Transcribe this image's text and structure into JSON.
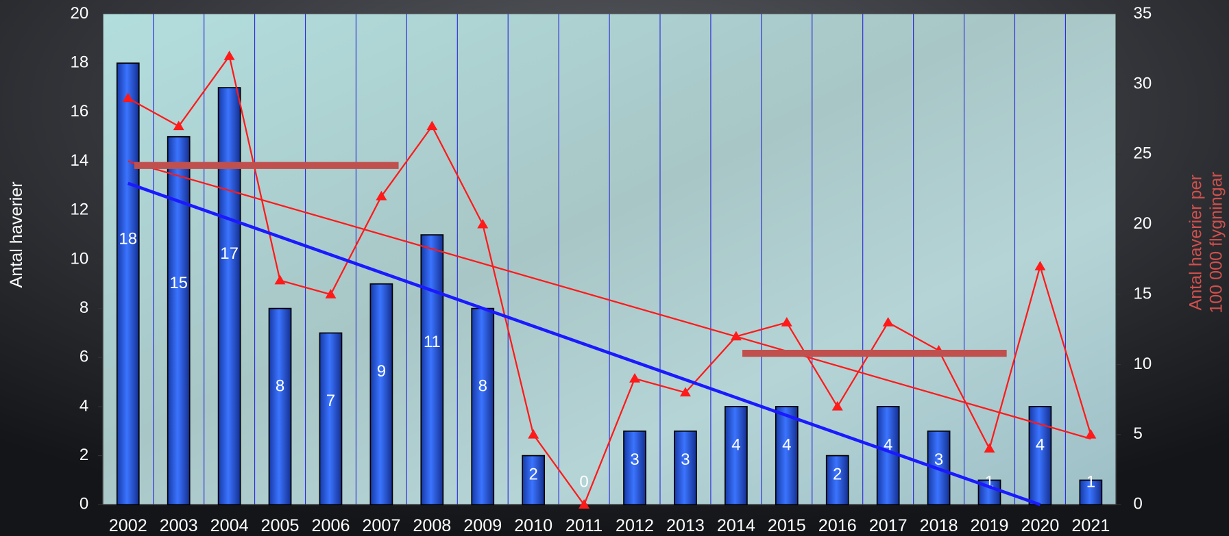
{
  "chart_data": {
    "type": "bar_line",
    "categories": [
      "2002",
      "2003",
      "2004",
      "2005",
      "2006",
      "2007",
      "2008",
      "2009",
      "2010",
      "2011",
      "2012",
      "2013",
      "2014",
      "2015",
      "2016",
      "2017",
      "2018",
      "2019",
      "2020",
      "2021"
    ],
    "y_label": "Antal haverier",
    "y2_label": [
      "Antal haverier per",
      "100 000 flygningar"
    ],
    "ylim": [
      0,
      20
    ],
    "yticks": [
      0,
      2,
      4,
      6,
      8,
      10,
      12,
      14,
      16,
      18,
      20
    ],
    "y2lim": [
      0,
      35
    ],
    "y2ticks": [
      0,
      5,
      10,
      15,
      20,
      25,
      30,
      35
    ],
    "grid": true,
    "series": [
      {
        "type": "bar",
        "color": "#2a5ce0",
        "values": [
          18,
          15,
          17,
          8,
          7,
          9,
          11,
          8,
          2,
          0,
          3,
          3,
          4,
          4,
          2,
          4,
          3,
          1,
          4,
          1
        ]
      },
      {
        "type": "line",
        "axis": "y2",
        "color": "#ff1a1a",
        "values": [
          29,
          27,
          32,
          16,
          15,
          22,
          27,
          20,
          5,
          0,
          9,
          8,
          12,
          13,
          7,
          13,
          11,
          4,
          17,
          5
        ]
      }
    ],
    "trend_lines": [
      {
        "axis": "y",
        "color": "#1a1aff",
        "x": [
          "2002",
          "2020"
        ],
        "values": [
          13.1,
          0
        ]
      },
      {
        "axis": "y2",
        "color": "#ff1a1a",
        "x": [
          "2002",
          "2021"
        ],
        "values": [
          24.5,
          4.7
        ]
      }
    ],
    "average_lines": [
      {
        "axis": "y2",
        "color": "#c0504d",
        "x": [
          "2002",
          "2007"
        ],
        "value": 24.2
      },
      {
        "axis": "y2",
        "color": "#c0504d",
        "x": [
          "2014",
          "2019"
        ],
        "value": 10.8
      }
    ]
  }
}
